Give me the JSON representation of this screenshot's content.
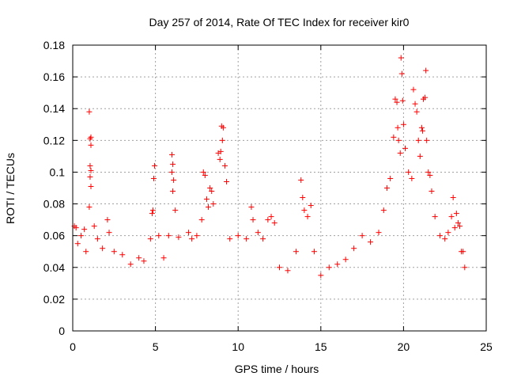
{
  "chart_data": {
    "type": "scatter",
    "title": "Day 257 of 2014, Rate Of TEC Index for receiver kir0",
    "xlabel": "GPS time / hours",
    "ylabel": "ROTI / TECUs",
    "xlim": [
      0,
      25
    ],
    "ylim": [
      0,
      0.18
    ],
    "xticks": [
      "0",
      "5",
      "10",
      "15",
      "20",
      "25"
    ],
    "yticks": [
      "0",
      "0.02",
      "0.04",
      "0.06",
      "0.08",
      "0.1",
      "0.12",
      "0.14",
      "0.16",
      "0.18"
    ],
    "grid": true,
    "marker": "+",
    "color": "#ff0000",
    "series": [
      {
        "values": [
          [
            0.1,
            0.066
          ],
          [
            0.2,
            0.065
          ],
          [
            0.3,
            0.055
          ],
          [
            0.5,
            0.06
          ],
          [
            0.7,
            0.064
          ],
          [
            0.8,
            0.05
          ],
          [
            1.0,
            0.138
          ],
          [
            1.1,
            0.122
          ],
          [
            1.05,
            0.121
          ],
          [
            1.1,
            0.117
          ],
          [
            1.05,
            0.104
          ],
          [
            1.1,
            0.101
          ],
          [
            1.05,
            0.097
          ],
          [
            1.1,
            0.091
          ],
          [
            1.0,
            0.078
          ],
          [
            1.3,
            0.066
          ],
          [
            1.5,
            0.058
          ],
          [
            1.8,
            0.052
          ],
          [
            2.1,
            0.07
          ],
          [
            2.2,
            0.062
          ],
          [
            2.5,
            0.05
          ],
          [
            3.0,
            0.048
          ],
          [
            3.5,
            0.042
          ],
          [
            4.0,
            0.046
          ],
          [
            4.3,
            0.044
          ],
          [
            4.7,
            0.058
          ],
          [
            4.8,
            0.074
          ],
          [
            4.85,
            0.076
          ],
          [
            4.9,
            0.096
          ],
          [
            4.95,
            0.104
          ],
          [
            5.2,
            0.06
          ],
          [
            5.5,
            0.046
          ],
          [
            5.8,
            0.06
          ],
          [
            6.0,
            0.111
          ],
          [
            6.05,
            0.105
          ],
          [
            6.0,
            0.1
          ],
          [
            6.1,
            0.095
          ],
          [
            6.05,
            0.088
          ],
          [
            6.2,
            0.076
          ],
          [
            6.4,
            0.059
          ],
          [
            7.0,
            0.062
          ],
          [
            7.2,
            0.058
          ],
          [
            7.5,
            0.06
          ],
          [
            7.8,
            0.07
          ],
          [
            7.9,
            0.1
          ],
          [
            8.0,
            0.098
          ],
          [
            8.1,
            0.083
          ],
          [
            8.2,
            0.078
          ],
          [
            8.3,
            0.09
          ],
          [
            8.4,
            0.088
          ],
          [
            8.5,
            0.08
          ],
          [
            8.8,
            0.112
          ],
          [
            8.9,
            0.108
          ],
          [
            8.95,
            0.113
          ],
          [
            9.0,
            0.129
          ],
          [
            9.1,
            0.128
          ],
          [
            9.05,
            0.12
          ],
          [
            9.2,
            0.104
          ],
          [
            9.3,
            0.094
          ],
          [
            9.5,
            0.058
          ],
          [
            10.0,
            0.06
          ],
          [
            10.5,
            0.058
          ],
          [
            10.8,
            0.078
          ],
          [
            10.9,
            0.07
          ],
          [
            11.2,
            0.062
          ],
          [
            11.5,
            0.058
          ],
          [
            11.8,
            0.07
          ],
          [
            12.0,
            0.072
          ],
          [
            12.2,
            0.068
          ],
          [
            12.5,
            0.04
          ],
          [
            13.0,
            0.038
          ],
          [
            13.5,
            0.05
          ],
          [
            13.8,
            0.095
          ],
          [
            13.9,
            0.084
          ],
          [
            14.0,
            0.076
          ],
          [
            14.2,
            0.072
          ],
          [
            14.4,
            0.079
          ],
          [
            14.6,
            0.05
          ],
          [
            15.0,
            0.035
          ],
          [
            15.5,
            0.04
          ],
          [
            16.0,
            0.042
          ],
          [
            16.5,
            0.045
          ],
          [
            17.0,
            0.052
          ],
          [
            17.5,
            0.06
          ],
          [
            18.0,
            0.056
          ],
          [
            18.5,
            0.062
          ],
          [
            18.8,
            0.076
          ],
          [
            19.0,
            0.09
          ],
          [
            19.2,
            0.096
          ],
          [
            19.4,
            0.122
          ],
          [
            19.5,
            0.146
          ],
          [
            19.6,
            0.144
          ],
          [
            19.65,
            0.128
          ],
          [
            19.7,
            0.12
          ],
          [
            19.8,
            0.112
          ],
          [
            19.85,
            0.172
          ],
          [
            19.9,
            0.162
          ],
          [
            19.95,
            0.145
          ],
          [
            20.0,
            0.13
          ],
          [
            20.1,
            0.115
          ],
          [
            20.3,
            0.1
          ],
          [
            20.5,
            0.096
          ],
          [
            20.6,
            0.152
          ],
          [
            20.7,
            0.143
          ],
          [
            20.8,
            0.138
          ],
          [
            20.9,
            0.12
          ],
          [
            21.0,
            0.11
          ],
          [
            21.1,
            0.128
          ],
          [
            21.15,
            0.126
          ],
          [
            21.2,
            0.146
          ],
          [
            21.3,
            0.147
          ],
          [
            21.35,
            0.164
          ],
          [
            21.4,
            0.12
          ],
          [
            21.5,
            0.1
          ],
          [
            21.6,
            0.098
          ],
          [
            21.7,
            0.088
          ],
          [
            21.9,
            0.072
          ],
          [
            22.2,
            0.06
          ],
          [
            22.5,
            0.058
          ],
          [
            22.7,
            0.062
          ],
          [
            22.9,
            0.072
          ],
          [
            23.0,
            0.084
          ],
          [
            23.1,
            0.065
          ],
          [
            23.2,
            0.074
          ],
          [
            23.3,
            0.068
          ],
          [
            23.4,
            0.066
          ],
          [
            23.5,
            0.05
          ],
          [
            23.6,
            0.05
          ],
          [
            23.7,
            0.04
          ]
        ]
      }
    ]
  }
}
